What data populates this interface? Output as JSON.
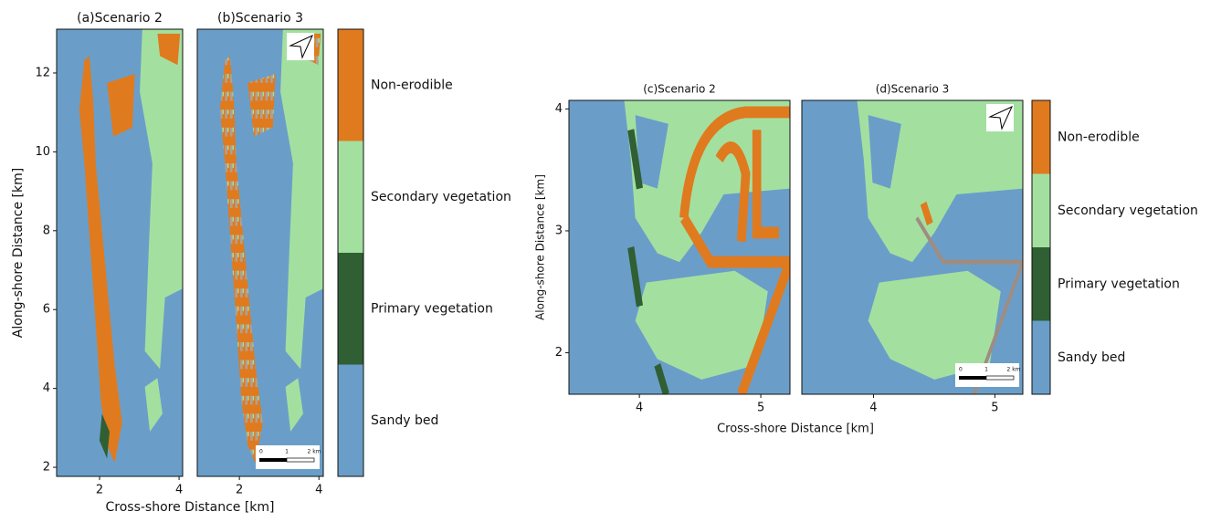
{
  "chart_data": [
    {
      "type": "map",
      "xlabel": "Cross-shore Distance [km]",
      "ylabel": "Along-shore Distance [km]",
      "panels": [
        {
          "title": "(a)Scenario 2",
          "xlim": [
            0.92,
            4.09
          ],
          "ylim": [
            1.77,
            13.11
          ],
          "xticks": [
            2,
            4
          ],
          "yticks": [
            2,
            4,
            6,
            8,
            10,
            12
          ]
        },
        {
          "title": "(b)Scenario 3",
          "xlim": [
            0.94,
            4.11
          ],
          "ylim": [
            1.77,
            13.11
          ],
          "xticks": [
            2,
            4
          ],
          "scale_bar": [
            "0",
            "1",
            "2 km"
          ]
        }
      ],
      "legend": {
        "categories": [
          "Sandy bed",
          "Primary vegetation",
          "Secondary vegetation",
          "Non-erodible"
        ],
        "colors": [
          "#6a9ec8",
          "#2f5f32",
          "#a3e0a0",
          "#e07a1e"
        ]
      }
    },
    {
      "type": "map",
      "xlabel": "Cross-shore Distance [km]",
      "ylabel": "Along-shore Distance [km]",
      "panels": [
        {
          "title": "(c)Scenario 2",
          "xlim": [
            3.42,
            5.24
          ],
          "ylim": [
            1.66,
            4.07
          ],
          "xticks": [
            4,
            5
          ],
          "yticks": [
            2,
            3,
            4
          ]
        },
        {
          "title": "(d)Scenario 3",
          "xlim": [
            3.41,
            5.23
          ],
          "ylim": [
            1.66,
            4.07
          ],
          "xticks": [
            4,
            5
          ],
          "scale_bar": [
            "0",
            "1",
            "2 km"
          ]
        }
      ],
      "legend": {
        "categories": [
          "Sandy bed",
          "Primary vegetation",
          "Secondary vegetation",
          "Non-erodible"
        ],
        "colors": [
          "#6a9ec8",
          "#2f5f32",
          "#a3e0a0",
          "#e07a1e"
        ]
      }
    }
  ]
}
